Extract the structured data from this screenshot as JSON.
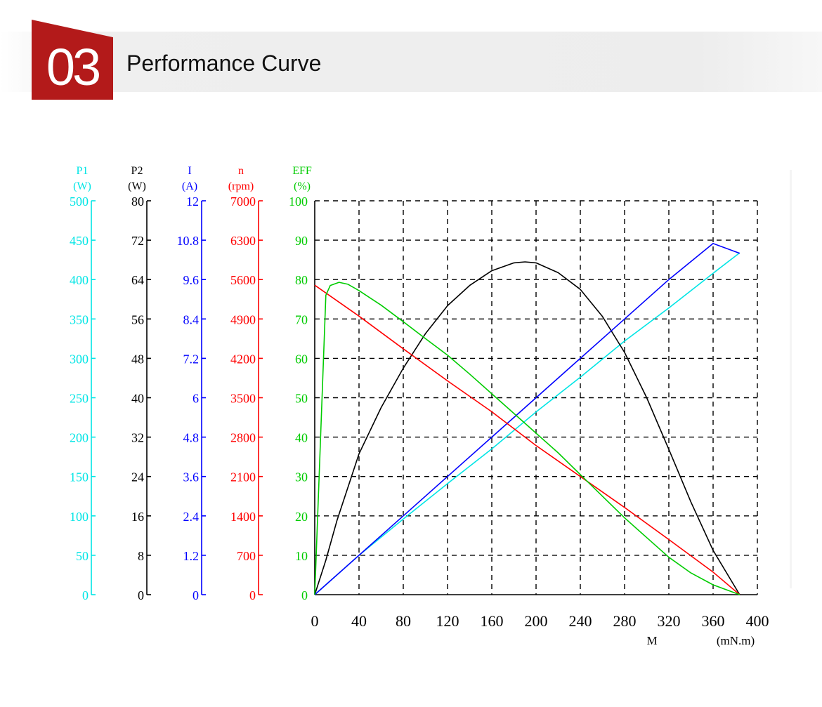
{
  "header": {
    "number": "03",
    "title": "Performance Curve"
  },
  "colors": {
    "accent": "#b31a1a",
    "p1": "#00e5e5",
    "p2": "#000000",
    "current": "#0000ff",
    "speed": "#ff0000",
    "eff": "#00cc00"
  },
  "chart_data": {
    "type": "line",
    "x": {
      "label": "M",
      "unit": "(mN.m)",
      "ticks": [
        0,
        40,
        80,
        120,
        160,
        200,
        240,
        280,
        320,
        360,
        400
      ],
      "range": [
        0,
        400
      ]
    },
    "grid": "dashed",
    "axes": [
      {
        "key": "p1",
        "name": "P1",
        "unit": "(W)",
        "ticks": [
          "0",
          "50",
          "100",
          "150",
          "200",
          "250",
          "300",
          "350",
          "400",
          "450",
          "500"
        ],
        "range": [
          0,
          500
        ]
      },
      {
        "key": "p2",
        "name": "P2",
        "unit": "(W)",
        "ticks": [
          "0",
          "8",
          "16",
          "24",
          "32",
          "40",
          "48",
          "56",
          "64",
          "72",
          "80"
        ],
        "range": [
          0,
          80
        ]
      },
      {
        "key": "current",
        "name": "I",
        "unit": "(A)",
        "ticks": [
          "0",
          "1.2",
          "2.4",
          "3.6",
          "4.8",
          "6",
          "7.2",
          "8.4",
          "9.6",
          "10.8",
          "12"
        ],
        "range": [
          0,
          12
        ]
      },
      {
        "key": "speed",
        "name": "n",
        "unit": "(rpm)",
        "ticks": [
          "0",
          "700",
          "1400",
          "2100",
          "2800",
          "3500",
          "4200",
          "4900",
          "5600",
          "6300",
          "7000"
        ],
        "range": [
          0,
          7000
        ]
      },
      {
        "key": "eff",
        "name": "EFF",
        "unit": "(%)",
        "ticks": [
          "0",
          "10",
          "20",
          "30",
          "40",
          "50",
          "60",
          "70",
          "80",
          "90",
          "100"
        ],
        "range": [
          0,
          100
        ]
      }
    ],
    "series": [
      {
        "axis": "p1",
        "points": [
          [
            0,
            0
          ],
          [
            40,
            50
          ],
          [
            80,
            96
          ],
          [
            120,
            141
          ],
          [
            160,
            185
          ],
          [
            200,
            232
          ],
          [
            240,
            276
          ],
          [
            280,
            322
          ],
          [
            320,
            364
          ],
          [
            360,
            408
          ],
          [
            384,
            434
          ]
        ]
      },
      {
        "axis": "p2",
        "points": [
          [
            0,
            0
          ],
          [
            10,
            7
          ],
          [
            20,
            15
          ],
          [
            40,
            28.6
          ],
          [
            60,
            38
          ],
          [
            80,
            46
          ],
          [
            100,
            53
          ],
          [
            120,
            58.7
          ],
          [
            140,
            62.8
          ],
          [
            160,
            65.8
          ],
          [
            180,
            67.4
          ],
          [
            190,
            67.6
          ],
          [
            200,
            67.4
          ],
          [
            220,
            65.4
          ],
          [
            240,
            62
          ],
          [
            260,
            56.5
          ],
          [
            280,
            49.2
          ],
          [
            300,
            40
          ],
          [
            320,
            29.5
          ],
          [
            340,
            18.8
          ],
          [
            360,
            9
          ],
          [
            384,
            0
          ]
        ]
      },
      {
        "axis": "current",
        "points": [
          [
            0,
            0
          ],
          [
            40,
            1.2
          ],
          [
            80,
            2.4
          ],
          [
            120,
            3.6
          ],
          [
            160,
            4.8
          ],
          [
            200,
            6
          ],
          [
            240,
            7.2
          ],
          [
            280,
            8.4
          ],
          [
            320,
            9.6
          ],
          [
            360,
            10.7
          ],
          [
            384,
            10.4
          ]
        ]
      },
      {
        "axis": "speed",
        "points": [
          [
            0,
            5500
          ],
          [
            40,
            4950
          ],
          [
            80,
            4370
          ],
          [
            120,
            3800
          ],
          [
            160,
            3250
          ],
          [
            200,
            2650
          ],
          [
            240,
            2100
          ],
          [
            280,
            1550
          ],
          [
            320,
            980
          ],
          [
            360,
            400
          ],
          [
            384,
            0
          ]
        ]
      },
      {
        "axis": "eff",
        "points": [
          [
            0,
            0
          ],
          [
            10,
            76
          ],
          [
            14,
            78.5
          ],
          [
            22,
            79.3
          ],
          [
            30,
            78.8
          ],
          [
            40,
            77.2
          ],
          [
            60,
            73.5
          ],
          [
            80,
            69.3
          ],
          [
            100,
            65
          ],
          [
            120,
            60.8
          ],
          [
            140,
            56
          ],
          [
            160,
            51
          ],
          [
            180,
            46
          ],
          [
            200,
            41
          ],
          [
            220,
            36
          ],
          [
            240,
            30.5
          ],
          [
            260,
            25
          ],
          [
            280,
            19.5
          ],
          [
            300,
            14.5
          ],
          [
            320,
            9.5
          ],
          [
            340,
            5.5
          ],
          [
            360,
            2.5
          ],
          [
            384,
            0
          ]
        ]
      }
    ]
  }
}
